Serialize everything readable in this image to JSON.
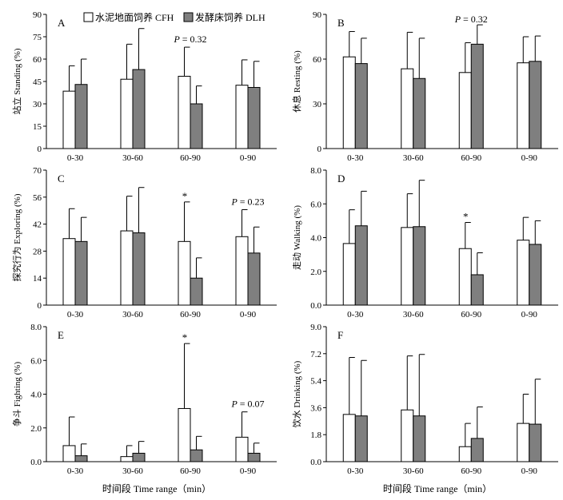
{
  "legend": {
    "cfh_label": "水泥地面饲养 CFH",
    "dlh_label": "发酵床饲养 DLH"
  },
  "xlabel": "时间段 Time range（min）",
  "colors": {
    "cfh": "#ffffff",
    "dlh": "#7f7f7f",
    "stroke": "#000000"
  },
  "chart_data": [
    {
      "type": "bar",
      "panel": "A",
      "ylabel": "站立 Standing (%)",
      "categories": [
        "0-30",
        "30-60",
        "60-90",
        "0-90"
      ],
      "yticks": [
        "0",
        "15",
        "30",
        "45",
        "60",
        "75",
        "90"
      ],
      "ylim": [
        0,
        90
      ],
      "series": [
        {
          "name": "水泥地面饲养 CFH",
          "values": [
            38.5,
            46.5,
            48.5,
            42.5
          ],
          "errors": [
            17,
            23.5,
            19.5,
            17
          ]
        },
        {
          "name": "发酵床饲养 DLH",
          "values": [
            43,
            53,
            30,
            41
          ],
          "errors": [
            17,
            27.5,
            12,
            17.5
          ]
        }
      ],
      "annotations": [
        {
          "category": "60-90",
          "text": "P = 0.32"
        }
      ]
    },
    {
      "type": "bar",
      "panel": "B",
      "ylabel": "休息 Resting (%)",
      "categories": [
        "0-30",
        "30-60",
        "60-90",
        "0-90"
      ],
      "yticks": [
        "0",
        "30",
        "60",
        "90"
      ],
      "ylim": [
        0,
        90
      ],
      "series": [
        {
          "name": "水泥地面饲养 CFH",
          "values": [
            61.5,
            53.5,
            51,
            57.5
          ],
          "errors": [
            17,
            24.5,
            20,
            17.5
          ]
        },
        {
          "name": "发酵床饲养 DLH",
          "values": [
            57,
            47,
            70,
            58.5
          ],
          "errors": [
            17,
            27,
            13,
            17
          ]
        }
      ],
      "annotations": [
        {
          "category": "60-90",
          "text": "P = 0.32"
        }
      ]
    },
    {
      "type": "bar",
      "panel": "C",
      "ylabel": "探究行为 Exploring (%)",
      "categories": [
        "0-30",
        "30-60",
        "60-90",
        "0-90"
      ],
      "yticks": [
        "0",
        "14",
        "28",
        "42",
        "56",
        "70"
      ],
      "ylim": [
        0,
        70
      ],
      "series": [
        {
          "name": "水泥地面饲养 CFH",
          "values": [
            34.5,
            38.5,
            33,
            35.5
          ],
          "errors": [
            15.5,
            18,
            20.5,
            14
          ]
        },
        {
          "name": "发酵床饲养 DLH",
          "values": [
            33,
            37.5,
            14,
            27
          ],
          "errors": [
            12.5,
            23.5,
            10.5,
            13.5
          ]
        }
      ],
      "annotations": [
        {
          "category": "60-90",
          "text": "*"
        },
        {
          "category": "0-90",
          "text": "P = 0.23"
        }
      ]
    },
    {
      "type": "bar",
      "panel": "D",
      "ylabel": "走动 Walking (%)",
      "categories": [
        "0-30",
        "30-60",
        "60-90",
        "0-90"
      ],
      "yticks": [
        "0.0",
        "2.0",
        "4.0",
        "6.0",
        "8.0"
      ],
      "ylim": [
        0,
        8
      ],
      "series": [
        {
          "name": "水泥地面饲养 CFH",
          "values": [
            3.65,
            4.6,
            3.35,
            3.85
          ],
          "errors": [
            2,
            2,
            1.55,
            1.35
          ]
        },
        {
          "name": "发酵床饲养 DLH",
          "values": [
            4.7,
            4.65,
            1.8,
            3.6
          ],
          "errors": [
            2.05,
            2.75,
            1.3,
            1.4
          ]
        }
      ],
      "annotations": [
        {
          "category": "60-90",
          "text": "*"
        }
      ]
    },
    {
      "type": "bar",
      "panel": "E",
      "ylabel": "争斗 Fighting (%)",
      "categories": [
        "0-30",
        "30-60",
        "60-90",
        "0-90"
      ],
      "yticks": [
        "0.0",
        "2.0",
        "4.0",
        "6.0",
        "8.0"
      ],
      "ylim": [
        0,
        8
      ],
      "series": [
        {
          "name": "水泥地面饲养 CFH",
          "values": [
            0.95,
            0.3,
            3.15,
            1.45
          ],
          "errors": [
            1.7,
            0.65,
            3.85,
            1.5
          ]
        },
        {
          "name": "发酵床饲养 DLH",
          "values": [
            0.35,
            0.5,
            0.7,
            0.5
          ],
          "errors": [
            0.7,
            0.7,
            0.8,
            0.6
          ]
        }
      ],
      "annotations": [
        {
          "category": "60-90",
          "text": "*"
        },
        {
          "category": "0-90",
          "text": "P = 0.07"
        }
      ]
    },
    {
      "type": "bar",
      "panel": "F",
      "ylabel": "饮水 Drinking (%)",
      "categories": [
        "0-30",
        "30-60",
        "60-90",
        "0-90"
      ],
      "yticks": [
        "0.0",
        "1.8",
        "3.6",
        "5.4",
        "7.2",
        "9.0"
      ],
      "ylim": [
        0,
        9
      ],
      "series": [
        {
          "name": "水泥地面饲养 CFH",
          "values": [
            3.15,
            3.45,
            1,
            2.55
          ],
          "errors": [
            3.8,
            3.6,
            1.55,
            1.95
          ]
        },
        {
          "name": "发酵床饲养 DLH",
          "values": [
            3.05,
            3.05,
            1.55,
            2.5
          ],
          "errors": [
            3.7,
            4.1,
            2.1,
            3
          ]
        }
      ],
      "annotations": []
    }
  ]
}
